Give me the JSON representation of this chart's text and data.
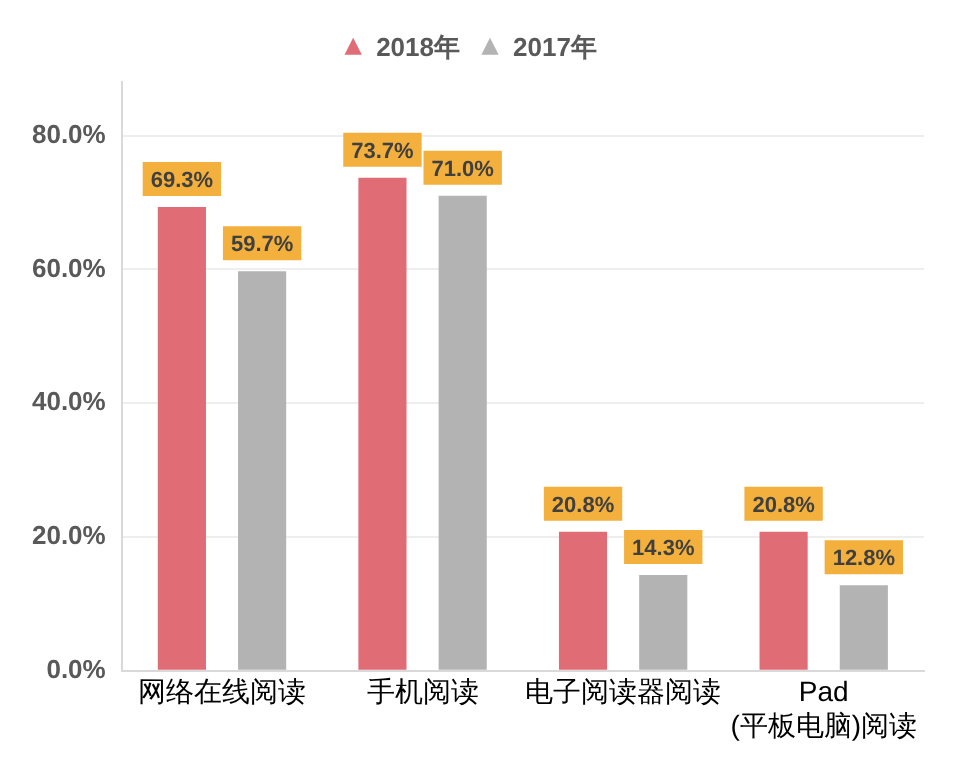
{
  "chart_data": {
    "type": "bar",
    "categories": [
      "网络在线阅读",
      "手机阅读",
      "电子阅读器阅读",
      "Pad (平板电脑)阅读"
    ],
    "series": [
      {
        "name": "2018年",
        "color": "#e06c75",
        "values": [
          69.3,
          73.7,
          20.8,
          20.8
        ],
        "value_labels": [
          "69.3%",
          "73.7%",
          "20.8%",
          "20.8%"
        ]
      },
      {
        "name": "2017年",
        "color": "#b3b3b3",
        "values": [
          59.7,
          71.0,
          14.3,
          12.8
        ],
        "value_labels": [
          "59.7%",
          "71.0%",
          "14.3%",
          "12.8%"
        ]
      }
    ],
    "ylim": [
      0,
      88
    ],
    "yticks": [
      {
        "value": 0,
        "label": "0.0%"
      },
      {
        "value": 20,
        "label": "20.0%"
      },
      {
        "value": 40,
        "label": "40.0%"
      },
      {
        "value": 60,
        "label": "60.0%"
      },
      {
        "value": 80,
        "label": "80.0%"
      }
    ],
    "grid": "y",
    "legend": "top"
  }
}
